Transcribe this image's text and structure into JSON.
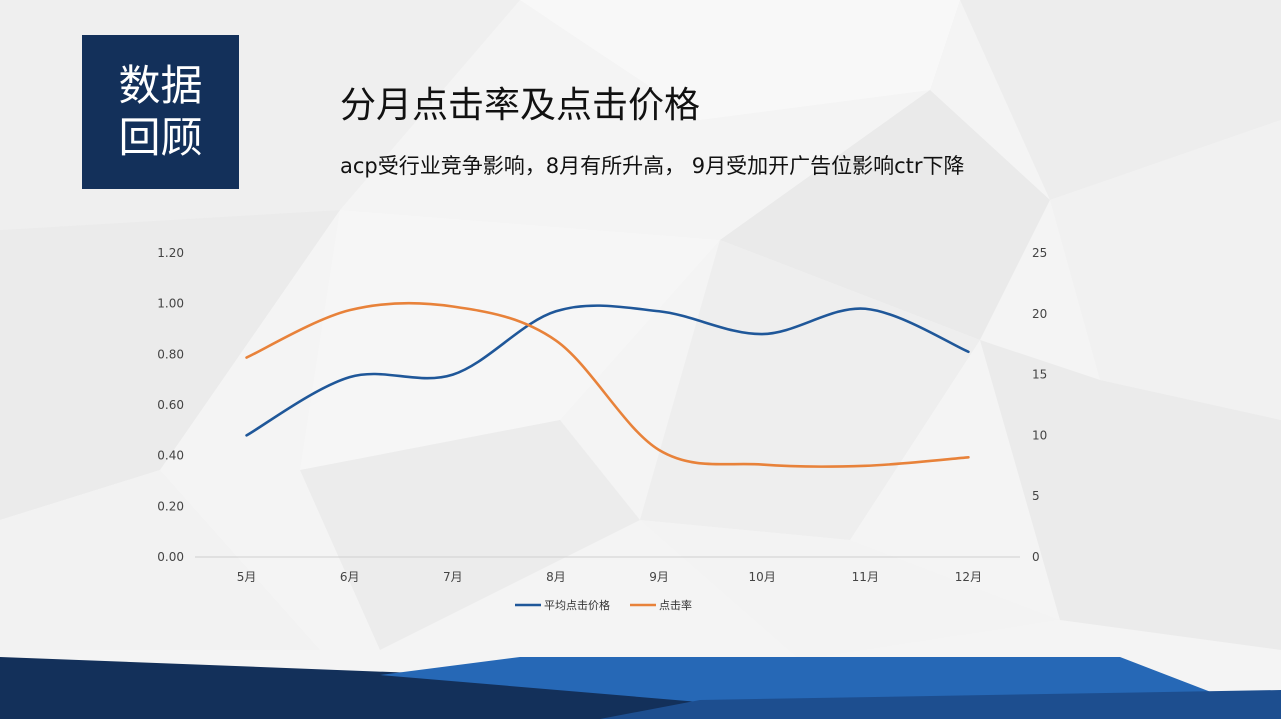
{
  "badge": {
    "text": "数据回顾"
  },
  "header": {
    "title": "分月点击率及点击价格",
    "subtitle": "acp受行业竞争影响，8月有所升高， 9月受加开广告位影响ctr下降"
  },
  "colors": {
    "badge": "#13305a",
    "series_blue": "#1f5799",
    "series_orange": "#e8823a",
    "footer_dark": "#13305a",
    "footer_blue": "#2668b6"
  },
  "chart_data": {
    "type": "line",
    "categories": [
      "5月",
      "6月",
      "7月",
      "8月",
      "9月",
      "10月",
      "11月",
      "12月"
    ],
    "y_left": {
      "range": [
        0,
        1.2
      ],
      "ticks": [
        "0.00",
        "0.20",
        "0.40",
        "0.60",
        "0.80",
        "1.00",
        "1.20"
      ]
    },
    "y_right": {
      "range": [
        0,
        25
      ],
      "ticks": [
        "0",
        "5",
        "10",
        "15",
        "20",
        "25"
      ]
    },
    "series": [
      {
        "name": "平均点击价格",
        "axis": "left",
        "color": "#1f5799",
        "values": [
          0.48,
          0.71,
          0.72,
          0.97,
          0.97,
          0.88,
          0.98,
          0.81
        ]
      },
      {
        "name": "点击率",
        "axis": "right",
        "color": "#e8823a",
        "values": [
          16.4,
          20.3,
          20.6,
          17.8,
          8.8,
          7.6,
          7.5,
          8.2
        ]
      }
    ],
    "grid": false,
    "legend": "bottom"
  }
}
